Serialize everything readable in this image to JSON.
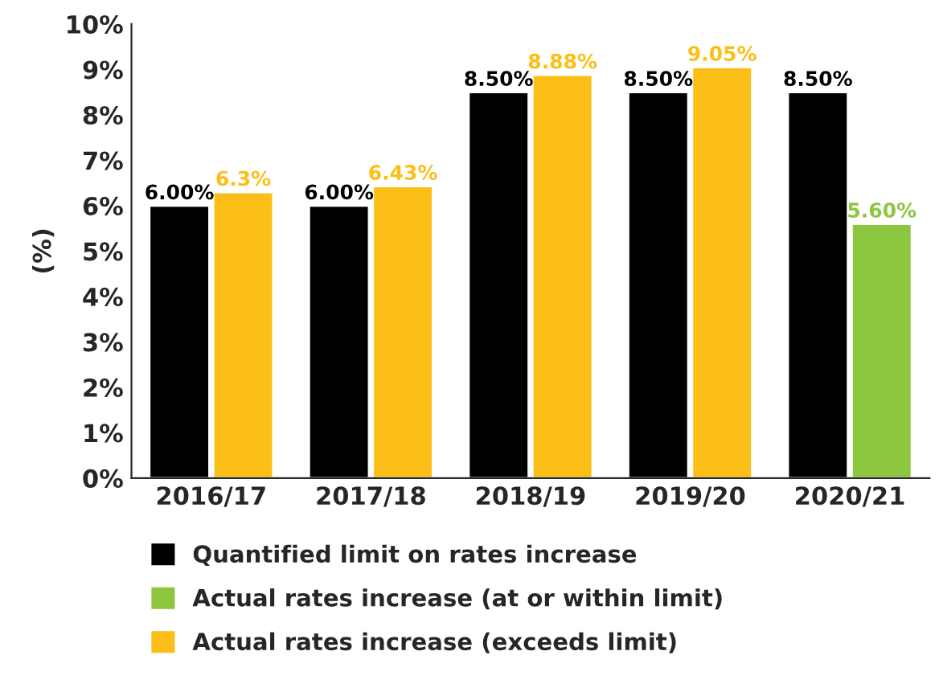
{
  "chart_data": {
    "type": "bar",
    "ylabel": "(%)",
    "categories": [
      "2016/17",
      "2017/18",
      "2018/19",
      "2019/20",
      "2020/21"
    ],
    "series": [
      {
        "name": "Quantified limit on rates increase",
        "color": "#000000",
        "values": [
          6.0,
          6.0,
          8.5,
          8.5,
          8.5
        ],
        "value_labels": [
          "6.00%",
          "6.00%",
          "8.50%",
          "8.50%",
          "8.50%"
        ]
      },
      {
        "name": "Actual rates increase (at or within limit)",
        "color": "#8dc63f",
        "values": [
          null,
          null,
          null,
          null,
          5.6
        ],
        "value_labels": [
          null,
          null,
          null,
          null,
          "5.60%"
        ]
      },
      {
        "name": "Actual rates increase (exceeds limit)",
        "color": "#fbbf17",
        "values": [
          6.3,
          6.43,
          8.88,
          9.05,
          null
        ],
        "value_labels": [
          "6.3%",
          "6.43%",
          "8.88%",
          "9.05%",
          null
        ]
      }
    ],
    "ylim": [
      0,
      10
    ],
    "yticks": [
      {
        "value": 0,
        "label": "0%"
      },
      {
        "value": 1,
        "label": "1%"
      },
      {
        "value": 2,
        "label": "2%"
      },
      {
        "value": 3,
        "label": "3%"
      },
      {
        "value": 4,
        "label": "4%"
      },
      {
        "value": 5,
        "label": "5%"
      },
      {
        "value": 6,
        "label": "6%"
      },
      {
        "value": 7,
        "label": "7%"
      },
      {
        "value": 8,
        "label": "8%"
      },
      {
        "value": 9,
        "label": "9%"
      },
      {
        "value": 10,
        "label": "10%"
      }
    ],
    "grid": false,
    "legend": "bottom"
  }
}
